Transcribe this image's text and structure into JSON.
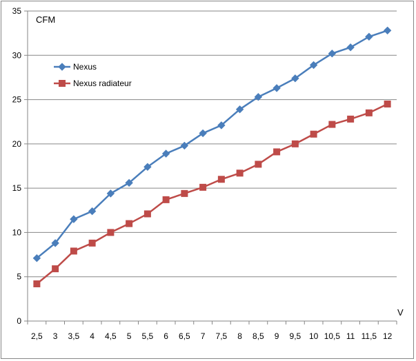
{
  "chart_data": {
    "type": "line",
    "title": "",
    "ylabel": "CFM",
    "xlabel": "V",
    "categories": [
      "2,5",
      "3",
      "3,5",
      "4",
      "4,5",
      "5",
      "5,5",
      "6",
      "6,5",
      "7",
      "7,5",
      "8",
      "8,5",
      "9",
      "9,5",
      "10",
      "10,5",
      "11",
      "11,5",
      "12"
    ],
    "ylim": [
      0,
      35
    ],
    "yticks": [
      0,
      5,
      10,
      15,
      20,
      25,
      30,
      35
    ],
    "grid": "horizontal",
    "legend_position": "top-left",
    "series": [
      {
        "name": "Nexus",
        "color": "#4a7ebb",
        "marker": "diamond",
        "values": [
          7.1,
          8.8,
          11.5,
          12.4,
          14.4,
          15.6,
          17.4,
          18.9,
          19.8,
          21.2,
          22.1,
          23.9,
          25.3,
          26.3,
          27.4,
          28.9,
          30.2,
          30.9,
          32.1,
          32.8
        ]
      },
      {
        "name": "Nexus radiateur",
        "color": "#be4b48",
        "marker": "square",
        "values": [
          4.2,
          5.9,
          7.9,
          8.8,
          10.0,
          11.0,
          12.1,
          13.7,
          14.4,
          15.1,
          16.0,
          16.7,
          17.7,
          19.1,
          20.0,
          21.1,
          22.2,
          22.8,
          23.5,
          24.5
        ]
      }
    ]
  }
}
